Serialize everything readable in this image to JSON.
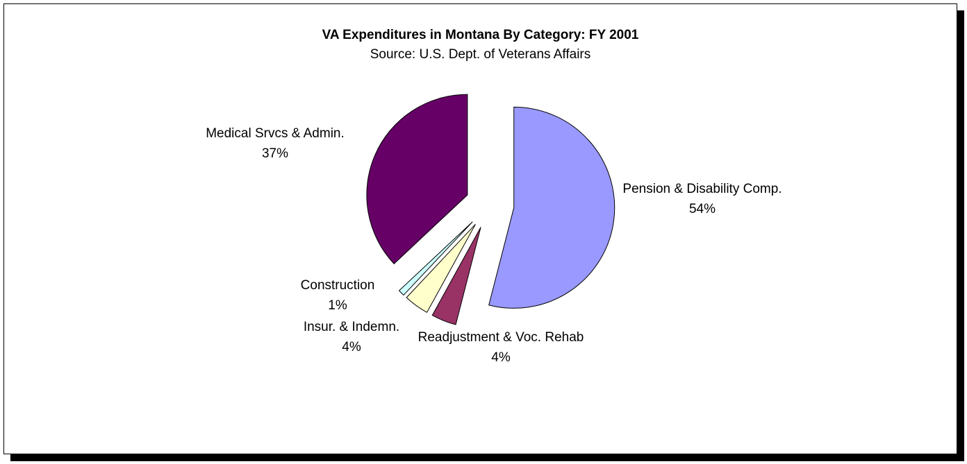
{
  "chart_data": {
    "type": "pie",
    "title": "VA Expenditures in Montana By Category: FY 2001",
    "subtitle": "Source: U.S. Dept. of Veterans Affairs",
    "categories": [
      "Pension & Disability Comp.",
      "Readjustment & Voc. Rehab",
      "Insur. & Indemn.",
      "Construction",
      "Medical Srvcs & Admin."
    ],
    "values": [
      54,
      4,
      4,
      1,
      37
    ],
    "value_labels": [
      "54%",
      "4%",
      "4%",
      "1%",
      "37%"
    ],
    "colors": [
      "#9999ff",
      "#993366",
      "#ffffcc",
      "#ccffff",
      "#660066"
    ]
  }
}
